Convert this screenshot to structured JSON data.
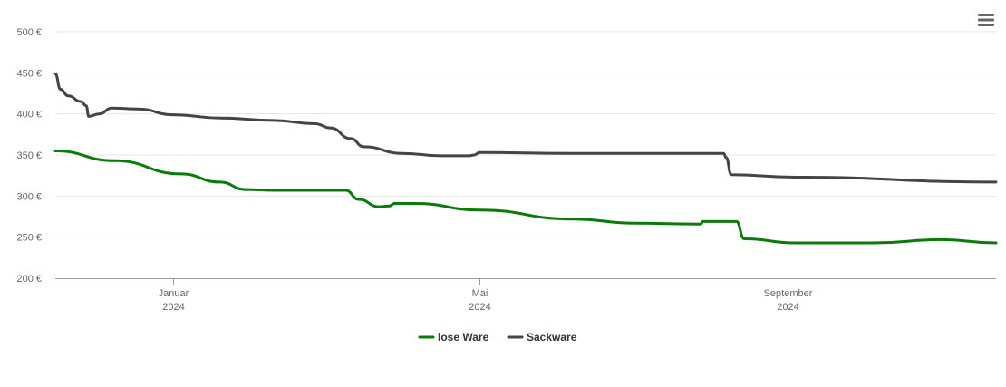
{
  "menu": {
    "icon": "hamburger-menu-icon"
  },
  "chart_data": {
    "type": "line",
    "title": "",
    "xlabel": "",
    "ylabel": "",
    "ylim": [
      200,
      500
    ],
    "y_ticks": [
      {
        "value": 200,
        "label": "200 €"
      },
      {
        "value": 250,
        "label": "250 €"
      },
      {
        "value": 300,
        "label": "300 €"
      },
      {
        "value": 350,
        "label": "350 €"
      },
      {
        "value": 400,
        "label": "400 €"
      },
      {
        "value": 450,
        "label": "450 €"
      },
      {
        "value": 500,
        "label": "500 €"
      }
    ],
    "xlim": [
      "2023-11-22",
      "2024-11-22"
    ],
    "x_ticks": [
      {
        "date": "2024-01-07",
        "month": "Januar",
        "year": "2024"
      },
      {
        "date": "2024-05-05",
        "month": "Mai",
        "year": "2024"
      },
      {
        "date": "2024-09-02",
        "month": "September",
        "year": "2024"
      }
    ],
    "grid": true,
    "legend_position": "bottom-center",
    "series": [
      {
        "name": "lose Ware",
        "color": "#0a7a0a",
        "points": [
          [
            "2023-11-22",
            355
          ],
          [
            "2023-12-15",
            343
          ],
          [
            "2024-01-10",
            327
          ],
          [
            "2024-01-25",
            317
          ],
          [
            "2024-02-04",
            308
          ],
          [
            "2024-02-15",
            307
          ],
          [
            "2024-03-14",
            307
          ],
          [
            "2024-03-19",
            296
          ],
          [
            "2024-03-27",
            287
          ],
          [
            "2024-03-31",
            288
          ],
          [
            "2024-04-02",
            291
          ],
          [
            "2024-04-10",
            291
          ],
          [
            "2024-05-05",
            283
          ],
          [
            "2024-06-10",
            272
          ],
          [
            "2024-07-05",
            267
          ],
          [
            "2024-07-30",
            266
          ],
          [
            "2024-07-31",
            269
          ],
          [
            "2024-08-13",
            269
          ],
          [
            "2024-08-16",
            248
          ],
          [
            "2024-09-05",
            243
          ],
          [
            "2024-10-05",
            243
          ],
          [
            "2024-11-01",
            247
          ],
          [
            "2024-11-22",
            243
          ]
        ]
      },
      {
        "name": "Sackware",
        "color": "#434348",
        "points": [
          [
            "2023-11-22",
            449
          ],
          [
            "2023-11-24",
            430
          ],
          [
            "2023-11-27",
            422
          ],
          [
            "2023-12-02",
            415
          ],
          [
            "2023-12-04",
            410
          ],
          [
            "2023-12-05",
            397
          ],
          [
            "2023-12-09",
            400
          ],
          [
            "2023-12-14",
            407
          ],
          [
            "2023-12-24",
            406
          ],
          [
            "2024-01-07",
            399
          ],
          [
            "2024-01-25",
            395
          ],
          [
            "2024-02-15",
            392
          ],
          [
            "2024-03-02",
            388
          ],
          [
            "2024-03-08",
            383
          ],
          [
            "2024-03-16",
            370
          ],
          [
            "2024-03-21",
            360
          ],
          [
            "2024-04-05",
            352
          ],
          [
            "2024-04-20",
            349
          ],
          [
            "2024-05-01",
            349
          ],
          [
            "2024-05-03",
            350
          ],
          [
            "2024-05-05",
            353
          ],
          [
            "2024-06-10",
            352
          ],
          [
            "2024-08-08",
            352
          ],
          [
            "2024-08-09",
            347
          ],
          [
            "2024-08-11",
            326
          ],
          [
            "2024-09-05",
            323
          ],
          [
            "2024-11-22",
            317
          ]
        ]
      }
    ]
  }
}
